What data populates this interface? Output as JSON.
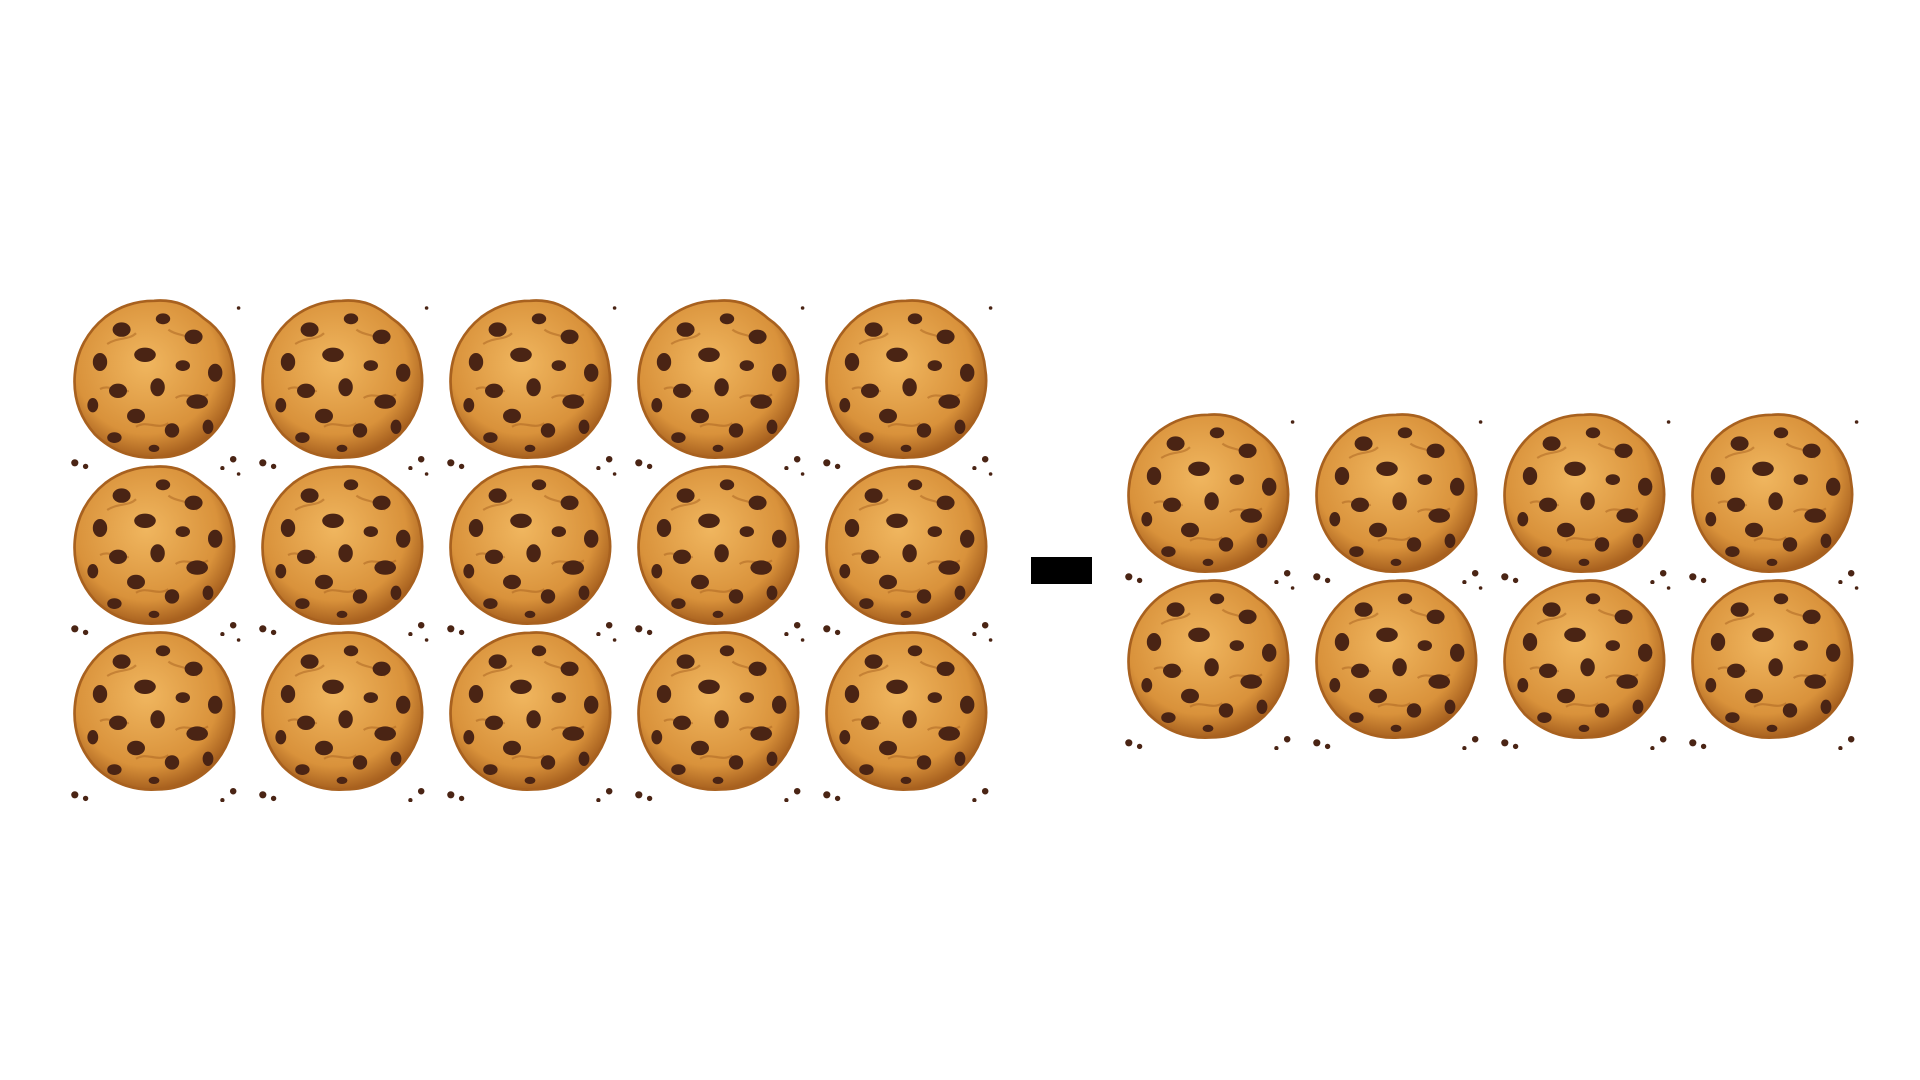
{
  "puzzle": {
    "operator": "minus",
    "left_group": {
      "cookie_count": 15,
      "rows": 3,
      "columns": 5
    },
    "right_group": {
      "cookie_count": 8,
      "rows": 2,
      "columns": 4
    }
  },
  "colors": {
    "background": "#ffffff",
    "minus_sign": "#000000",
    "cookie_dough": "#d9923b",
    "cookie_dough_light": "#f0b65f",
    "cookie_edge": "#a8611f",
    "chocolate_chip": "#4a2414"
  },
  "icons": {
    "cookie": "chocolate-chip-cookie-icon",
    "operator": "minus-sign-icon"
  }
}
